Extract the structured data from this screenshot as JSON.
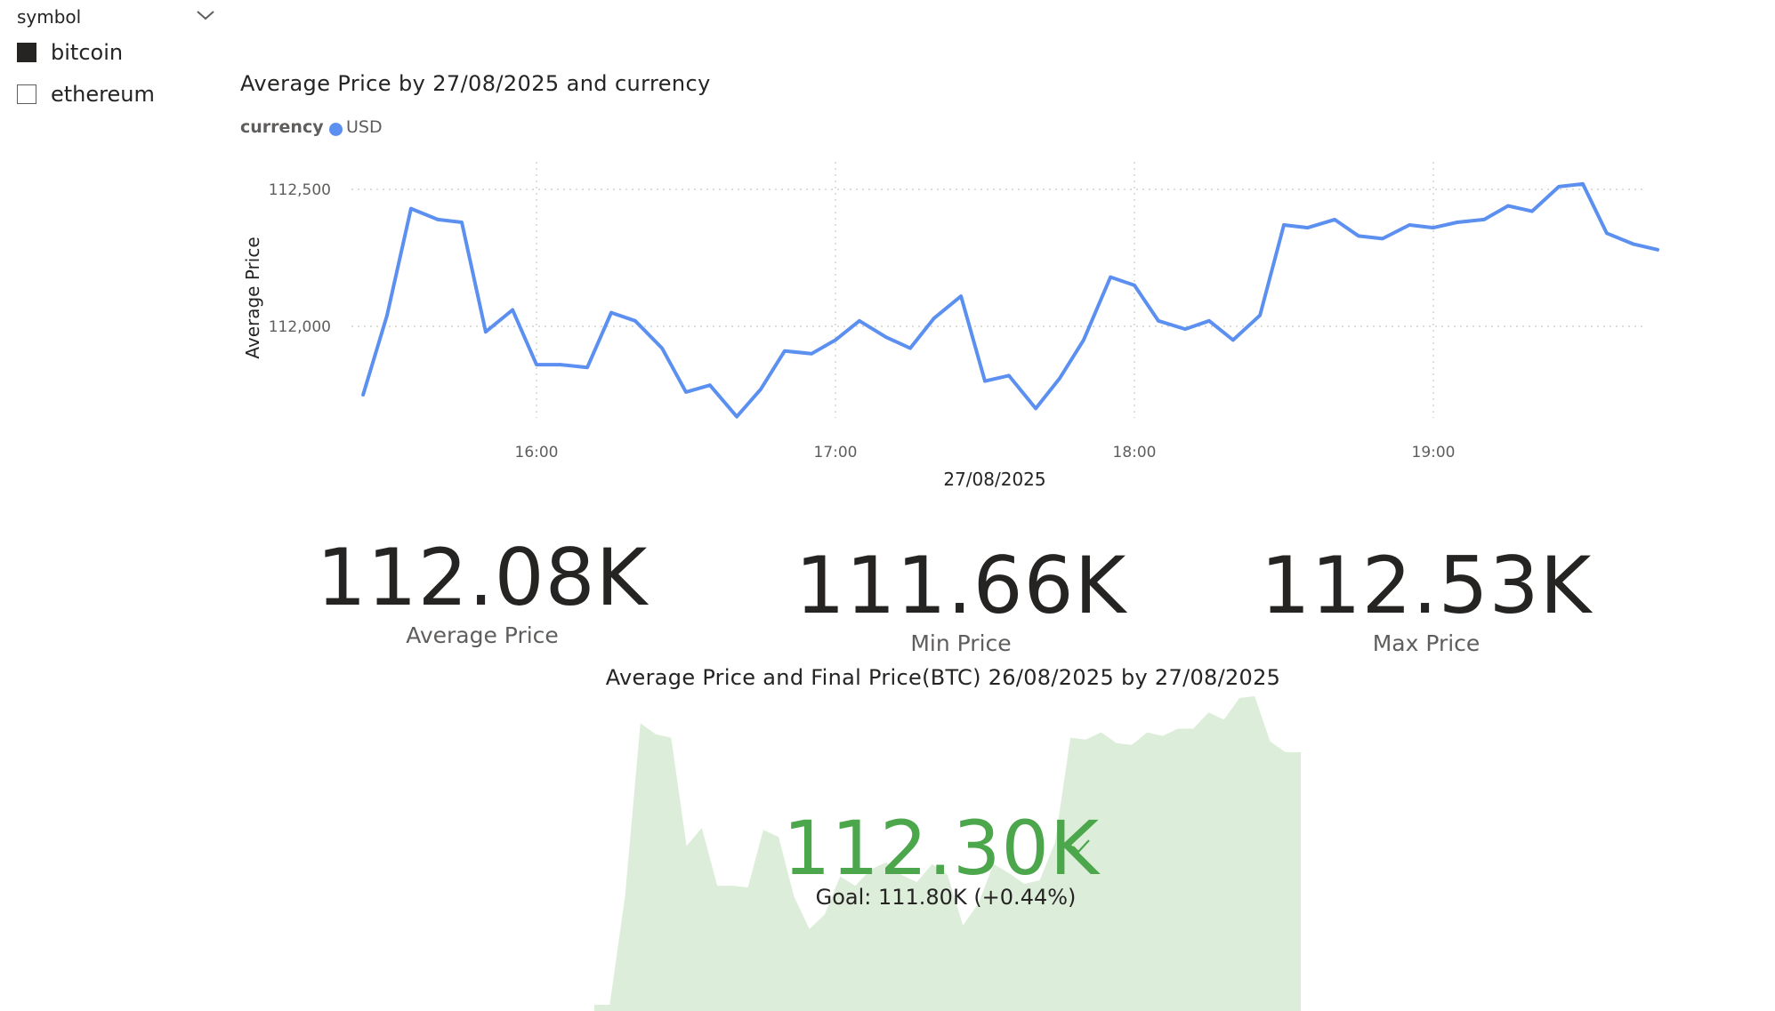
{
  "slicer": {
    "title": "symbol",
    "chevron_icon": "chevron-down-icon",
    "items": [
      {
        "label": "bitcoin",
        "checked": true
      },
      {
        "label": "ethereum",
        "checked": false
      }
    ]
  },
  "line_chart": {
    "title": "Average Price by 27/08/2025 and currency",
    "legend_title": "currency",
    "legend_label": "USD"
  },
  "cards": [
    {
      "value": "112.08K",
      "label": "Average Price"
    },
    {
      "value": "111.66K",
      "label": "Min Price"
    },
    {
      "value": "112.53K",
      "label": "Max Price"
    }
  ],
  "kpi": {
    "title": "Average Price and Final Price(BTC) 26/08/2025 by 27/08/2025",
    "value": "112.30K",
    "check_icon": "checkmark-icon",
    "goal": "Goal: 111.80K (+0.44%)"
  },
  "colors": {
    "series": "#5B8FF0",
    "kpi_good": "#4CA64C",
    "area_fill": "#dcedd9",
    "grid": "#c8c6c4"
  },
  "chart_data": [
    {
      "type": "line",
      "title": "Average Price by 27/08/2025 and currency",
      "xlabel": "27/08/2025",
      "ylabel": "Average Price",
      "x_ticks": [
        "16:00",
        "17:00",
        "18:00",
        "19:00"
      ],
      "y_ticks": [
        "112,000",
        "112,500"
      ],
      "y_tick_values": [
        112000,
        112500
      ],
      "x_tick_times": [
        16.0,
        17.0,
        18.0,
        19.0
      ],
      "grid": true,
      "legend": {
        "title": "currency",
        "position": "top-left",
        "entries": [
          "USD"
        ]
      },
      "series": [
        {
          "name": "USD",
          "x": [
            15.42,
            15.5,
            15.58,
            15.67,
            15.75,
            15.83,
            15.92,
            16.0,
            16.08,
            16.17,
            16.25,
            16.33,
            16.42,
            16.5,
            16.58,
            16.67,
            16.75,
            16.83,
            16.92,
            17.0,
            17.08,
            17.17,
            17.25,
            17.33,
            17.42,
            17.5,
            17.58,
            17.67,
            17.75,
            17.83,
            17.92,
            18.0,
            18.08,
            18.17,
            18.25,
            18.33,
            18.42,
            18.5,
            18.58,
            18.67,
            18.75,
            18.83,
            18.92,
            19.0,
            19.08,
            19.17,
            19.25,
            19.33,
            19.42,
            19.5,
            19.58,
            19.67,
            19.75
          ],
          "values": [
            111750,
            112040,
            112430,
            112390,
            112380,
            111980,
            112060,
            111860,
            111860,
            111850,
            112050,
            112020,
            111920,
            111760,
            111785,
            111670,
            111770,
            111910,
            111900,
            111950,
            112020,
            111960,
            111920,
            112030,
            112110,
            111800,
            111820,
            111700,
            111810,
            111950,
            112180,
            112150,
            112020,
            111990,
            112020,
            111950,
            112040,
            112370,
            112360,
            112390,
            112330,
            112320,
            112370,
            112360,
            112380,
            112390,
            112440,
            112420,
            112510,
            112520,
            112340,
            112300,
            112280
          ]
        }
      ]
    },
    {
      "type": "area",
      "title": "Average Price and Final Price(BTC) 26/08/2025 by 27/08/2025",
      "series": [
        {
          "values": [
            111600,
            111600,
            111900,
            112380,
            112350,
            112340,
            112040,
            112090,
            111930,
            111930,
            111925,
            112085,
            112065,
            111900,
            111810,
            111850,
            111955,
            111930,
            111975,
            111995,
            111960,
            111940,
            111990,
            111960,
            111820,
            111880,
            111990,
            111965,
            111935,
            111945,
            112050,
            112340,
            112335,
            112355,
            112325,
            112320,
            112355,
            112345,
            112365,
            112365,
            112410,
            112390,
            112450,
            112455,
            112330,
            112300,
            112300
          ]
        }
      ]
    }
  ]
}
